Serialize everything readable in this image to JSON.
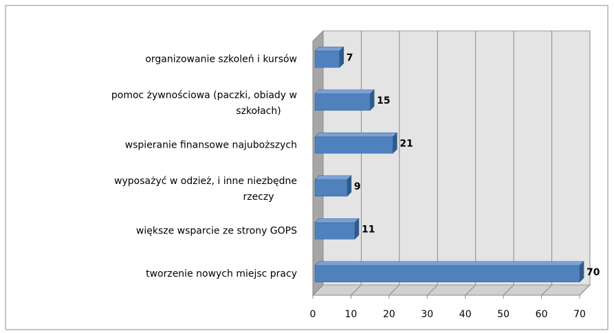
{
  "chart_data": {
    "type": "bar",
    "orientation": "horizontal",
    "categories": [
      "organizowanie szkoleń i kursów",
      "pomoc żywnościowa (paczki, obiady w szkołach)",
      "wspieranie finansowe najuboższych",
      "wyposażyć w odzież, i inne niezbędne rzeczy",
      "większe wsparcie ze strony GOPS",
      "tworzenie nowych miejsc pracy"
    ],
    "values": [
      7,
      15,
      21,
      9,
      11,
      70
    ],
    "color": "#4f81bd",
    "xlim": [
      0,
      70
    ],
    "xticks": [
      0,
      10,
      20,
      30,
      40,
      50,
      60,
      70
    ],
    "grid": true
  }
}
